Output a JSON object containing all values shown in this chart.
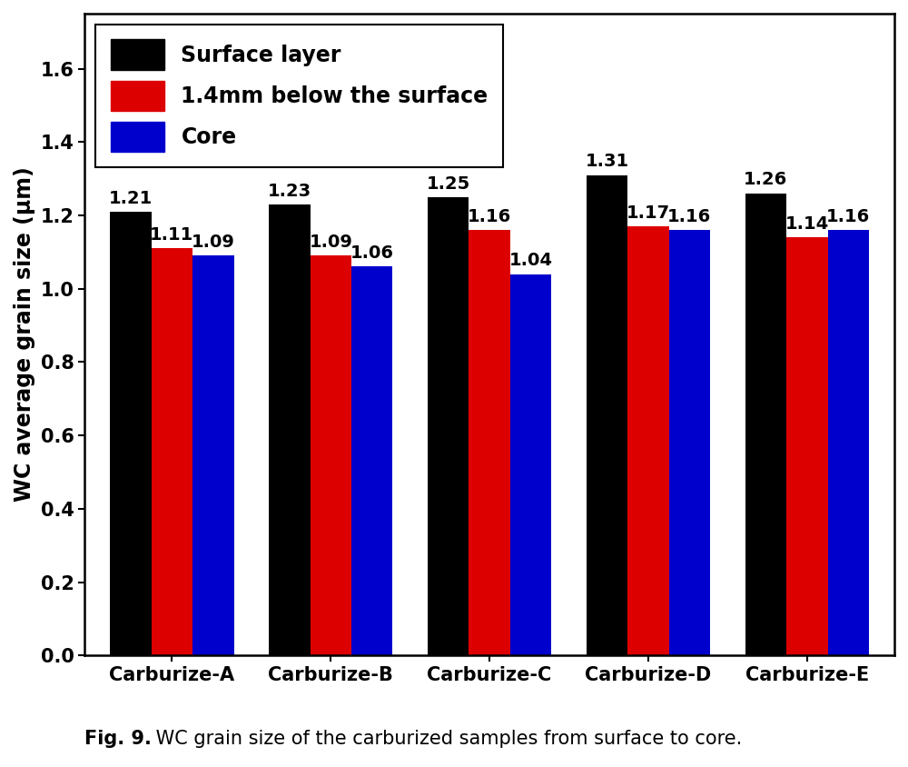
{
  "categories": [
    "Carburize-A",
    "Carburize-B",
    "Carburize-C",
    "Carburize-D",
    "Carburize-E"
  ],
  "series": {
    "Surface layer": [
      1.21,
      1.23,
      1.25,
      1.31,
      1.26
    ],
    "1.4mm below the surface": [
      1.11,
      1.09,
      1.16,
      1.17,
      1.14
    ],
    "Core": [
      1.09,
      1.06,
      1.04,
      1.16,
      1.16
    ]
  },
  "colors": {
    "Surface layer": "#000000",
    "1.4mm below the surface": "#dd0000",
    "Core": "#0000cc"
  },
  "ylabel": "WC average grain size (μm)",
  "ylim": [
    0.0,
    1.75
  ],
  "yticks": [
    0.0,
    0.2,
    0.4,
    0.6,
    0.8,
    1.0,
    1.2,
    1.4,
    1.6
  ],
  "caption_bold": "Fig. 9.",
  "caption_normal": " WC grain size of the carburized samples from surface to core.",
  "bar_width": 0.26,
  "legend_fontsize": 17,
  "axis_label_fontsize": 17,
  "tick_fontsize": 15,
  "annotation_fontsize": 14,
  "caption_fontsize": 15,
  "background_color": "#ffffff",
  "figure_width": 10.0,
  "figure_height": 8.44
}
